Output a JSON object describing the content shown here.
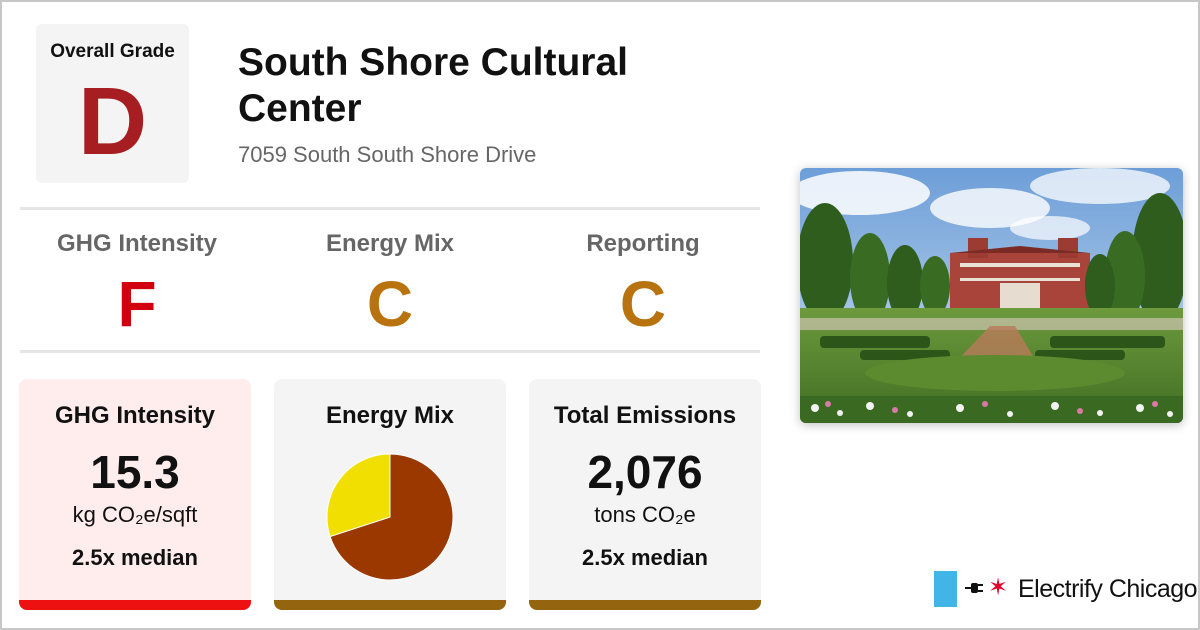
{
  "overall": {
    "label": "Overall Grade",
    "grade": "D",
    "grade_color": "#a61e22"
  },
  "building": {
    "name": "South Shore Cultural Center",
    "address": "7059 South South Shore Drive"
  },
  "sub_grades": [
    {
      "label": "GHG Intensity",
      "grade": "F",
      "color": "#d0000f"
    },
    {
      "label": "Energy Mix",
      "grade": "C",
      "color": "#b8730f"
    },
    {
      "label": "Reporting",
      "grade": "C",
      "color": "#b8730f"
    }
  ],
  "cards": {
    "ghg": {
      "title": "GHG Intensity",
      "value": "15.3",
      "unit": "kg CO₂e/sqft",
      "median": "2.5x median",
      "bg_color": "#ffeced",
      "bar_color": "#ee1111"
    },
    "energy_mix": {
      "title": "Energy Mix",
      "bg_color": "#f4f4f4",
      "bar_color": "#95640f",
      "pie": {
        "slices": [
          {
            "share": 0.7,
            "color": "#9a3800",
            "icon": "gas-slice"
          },
          {
            "share": 0.3,
            "color": "#f0df00",
            "icon": "electricity-slice"
          }
        ]
      }
    },
    "emissions": {
      "title": "Total Emissions",
      "value": "2,076",
      "unit": "tons CO₂e",
      "median": "2.5x median",
      "bg_color": "#f4f4f4",
      "bar_color": "#95640f"
    }
  },
  "photo": {
    "icon": "building-photo"
  },
  "branding": {
    "name": "Electrify Chicago",
    "icons": [
      "chicago-flag-bar-icon",
      "plug-icon",
      "chicago-star-icon"
    ]
  }
}
